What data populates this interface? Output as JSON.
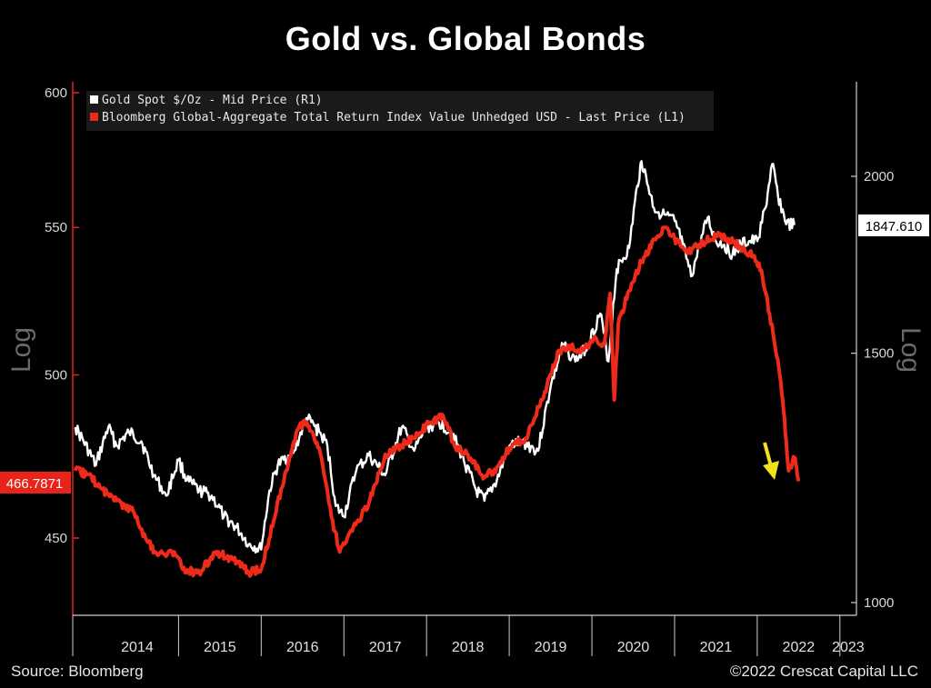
{
  "chart_data": {
    "type": "line",
    "title": "Gold vs. Global Bonds",
    "x_ticks": [
      "2014",
      "2015",
      "2016",
      "2017",
      "2018",
      "2019",
      "2020",
      "2021",
      "2022",
      "2023"
    ],
    "y_left": {
      "label": "Log",
      "scale": "log",
      "ticks": [
        450,
        500,
        550,
        600
      ],
      "range": [
        430,
        605
      ]
    },
    "y_right": {
      "label": "Log",
      "scale": "log",
      "ticks": [
        1000,
        1500,
        2000
      ],
      "range": [
        950,
        2350
      ]
    },
    "legend_position": "top-left",
    "grid": false,
    "series": [
      {
        "name": "Gold Spot $/Oz - Mid Price (R1)",
        "axis": "right",
        "color": "#ffffff",
        "last_value_label": "1847.610",
        "points": [
          [
            2013.75,
            1330
          ],
          [
            2013.85,
            1300
          ],
          [
            2014.0,
            1250
          ],
          [
            2014.15,
            1330
          ],
          [
            2014.25,
            1290
          ],
          [
            2014.4,
            1320
          ],
          [
            2014.55,
            1300
          ],
          [
            2014.7,
            1230
          ],
          [
            2014.85,
            1190
          ],
          [
            2015.0,
            1260
          ],
          [
            2015.1,
            1220
          ],
          [
            2015.25,
            1200
          ],
          [
            2015.4,
            1190
          ],
          [
            2015.55,
            1150
          ],
          [
            2015.7,
            1130
          ],
          [
            2015.85,
            1100
          ],
          [
            2016.0,
            1090
          ],
          [
            2016.1,
            1200
          ],
          [
            2016.2,
            1250
          ],
          [
            2016.4,
            1280
          ],
          [
            2016.55,
            1350
          ],
          [
            2016.7,
            1320
          ],
          [
            2016.8,
            1290
          ],
          [
            2016.9,
            1170
          ],
          [
            2017.0,
            1150
          ],
          [
            2017.15,
            1240
          ],
          [
            2017.3,
            1270
          ],
          [
            2017.5,
            1230
          ],
          [
            2017.7,
            1330
          ],
          [
            2017.85,
            1280
          ],
          [
            2018.0,
            1330
          ],
          [
            2018.15,
            1340
          ],
          [
            2018.3,
            1320
          ],
          [
            2018.45,
            1260
          ],
          [
            2018.6,
            1200
          ],
          [
            2018.7,
            1180
          ],
          [
            2018.85,
            1220
          ],
          [
            2019.0,
            1290
          ],
          [
            2019.15,
            1300
          ],
          [
            2019.35,
            1280
          ],
          [
            2019.5,
            1420
          ],
          [
            2019.65,
            1520
          ],
          [
            2019.8,
            1480
          ],
          [
            2019.95,
            1520
          ],
          [
            2020.1,
            1600
          ],
          [
            2020.2,
            1480
          ],
          [
            2020.3,
            1720
          ],
          [
            2020.45,
            1780
          ],
          [
            2020.55,
            1970
          ],
          [
            2020.6,
            2050
          ],
          [
            2020.75,
            1900
          ],
          [
            2020.85,
            1880
          ],
          [
            2021.0,
            1860
          ],
          [
            2021.1,
            1790
          ],
          [
            2021.2,
            1700
          ],
          [
            2021.3,
            1780
          ],
          [
            2021.4,
            1870
          ],
          [
            2021.5,
            1800
          ],
          [
            2021.6,
            1790
          ],
          [
            2021.7,
            1760
          ],
          [
            2021.8,
            1790
          ],
          [
            2021.9,
            1800
          ],
          [
            2022.0,
            1800
          ],
          [
            2022.1,
            1900
          ],
          [
            2022.18,
            2040
          ],
          [
            2022.25,
            1940
          ],
          [
            2022.35,
            1850
          ],
          [
            2022.45,
            1847.61
          ]
        ]
      },
      {
        "name": "Bloomberg Global-Aggregate Total Return Index Value Unhedged USD - Last Price (L1)",
        "axis": "left",
        "color": "#ee2a1a",
        "last_value_label": "466.7871",
        "points": [
          [
            2013.75,
            470
          ],
          [
            2013.9,
            469
          ],
          [
            2014.05,
            465
          ],
          [
            2014.25,
            461
          ],
          [
            2014.45,
            458
          ],
          [
            2014.6,
            450
          ],
          [
            2014.75,
            445
          ],
          [
            2014.95,
            446
          ],
          [
            2015.05,
            441
          ],
          [
            2015.25,
            440
          ],
          [
            2015.45,
            446
          ],
          [
            2015.65,
            444
          ],
          [
            2015.85,
            440
          ],
          [
            2016.0,
            441
          ],
          [
            2016.15,
            455
          ],
          [
            2016.3,
            470
          ],
          [
            2016.45,
            483
          ],
          [
            2016.55,
            485
          ],
          [
            2016.7,
            477
          ],
          [
            2016.85,
            456
          ],
          [
            2016.95,
            446
          ],
          [
            2017.1,
            452
          ],
          [
            2017.3,
            460
          ],
          [
            2017.5,
            475
          ],
          [
            2017.7,
            478
          ],
          [
            2017.85,
            480
          ],
          [
            2018.05,
            485
          ],
          [
            2018.2,
            487
          ],
          [
            2018.35,
            477
          ],
          [
            2018.5,
            475
          ],
          [
            2018.7,
            468
          ],
          [
            2018.85,
            471
          ],
          [
            2019.0,
            477
          ],
          [
            2019.2,
            480
          ],
          [
            2019.4,
            492
          ],
          [
            2019.6,
            508
          ],
          [
            2019.75,
            509
          ],
          [
            2019.9,
            508
          ],
          [
            2020.05,
            512
          ],
          [
            2020.15,
            510
          ],
          [
            2020.22,
            527
          ],
          [
            2020.27,
            492
          ],
          [
            2020.32,
            517
          ],
          [
            2020.45,
            528
          ],
          [
            2020.6,
            538
          ],
          [
            2020.8,
            547
          ],
          [
            2020.9,
            550
          ],
          [
            2021.0,
            546
          ],
          [
            2021.15,
            541
          ],
          [
            2021.3,
            544
          ],
          [
            2021.5,
            547
          ],
          [
            2021.65,
            546
          ],
          [
            2021.8,
            543
          ],
          [
            2021.95,
            540
          ],
          [
            2022.05,
            535
          ],
          [
            2022.15,
            520
          ],
          [
            2022.25,
            505
          ],
          [
            2022.32,
            488
          ],
          [
            2022.38,
            470
          ],
          [
            2022.45,
            474
          ],
          [
            2022.5,
            466.79
          ]
        ]
      }
    ]
  },
  "labels": {
    "title": "Gold vs. Global Bonds",
    "source": "Source: Bloomberg",
    "credit": "©2022 Crescat Capital LLC",
    "left_axis_label": "Log",
    "right_axis_label": "Log",
    "left_last_value": "466.7871",
    "right_last_value": "1847.610"
  },
  "colors": {
    "background": "#000000",
    "gold_line": "#ffffff",
    "bond_line": "#ee2a1a",
    "arrow": "#f2e21a",
    "left_value_box": "#e8231a",
    "right_value_box": "#ffffff"
  },
  "annotation": {
    "icon": "down-arrow-icon",
    "color": "#f2e21a"
  }
}
